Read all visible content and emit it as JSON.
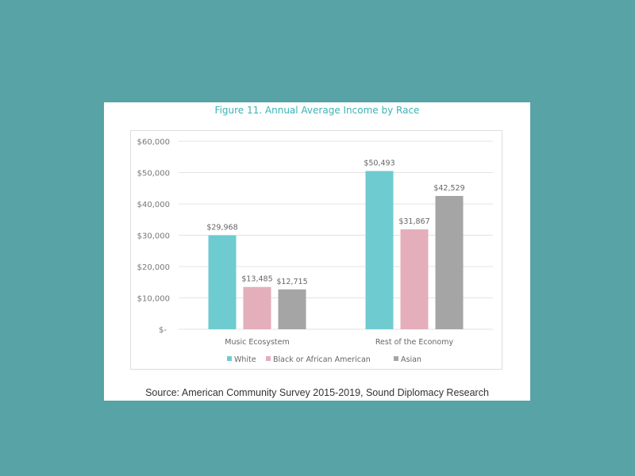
{
  "chart_data": {
    "type": "bar",
    "title": "Figure 11. Annual Average Income by Race",
    "categories": [
      "Music Ecosystem",
      "Rest of the Economy"
    ],
    "series": [
      {
        "name": "White",
        "color": "#6ecbd0",
        "values": [
          29968,
          50493
        ],
        "labels": [
          "$29,968",
          "$50,493"
        ]
      },
      {
        "name": "Black or African American",
        "color": "#e4aebb",
        "values": [
          13485,
          31867
        ],
        "labels": [
          "$13,485",
          "$31,867"
        ]
      },
      {
        "name": "Asian",
        "color": "#a5a5a5",
        "values": [
          12715,
          42529
        ],
        "labels": [
          "$12,715",
          "$42,529"
        ]
      }
    ],
    "yticks": [
      0,
      10000,
      20000,
      30000,
      40000,
      50000,
      60000
    ],
    "ytick_labels": [
      "$-",
      "$10,000",
      "$20,000",
      "$30,000",
      "$40,000",
      "$50,000",
      "$60,000"
    ],
    "ylim": [
      0,
      60000
    ],
    "xlabel": "",
    "ylabel": "",
    "grid": true,
    "legend_position": "bottom",
    "source": "Source: American Community Survey 2015-2019, Sound Diplomacy Research"
  }
}
